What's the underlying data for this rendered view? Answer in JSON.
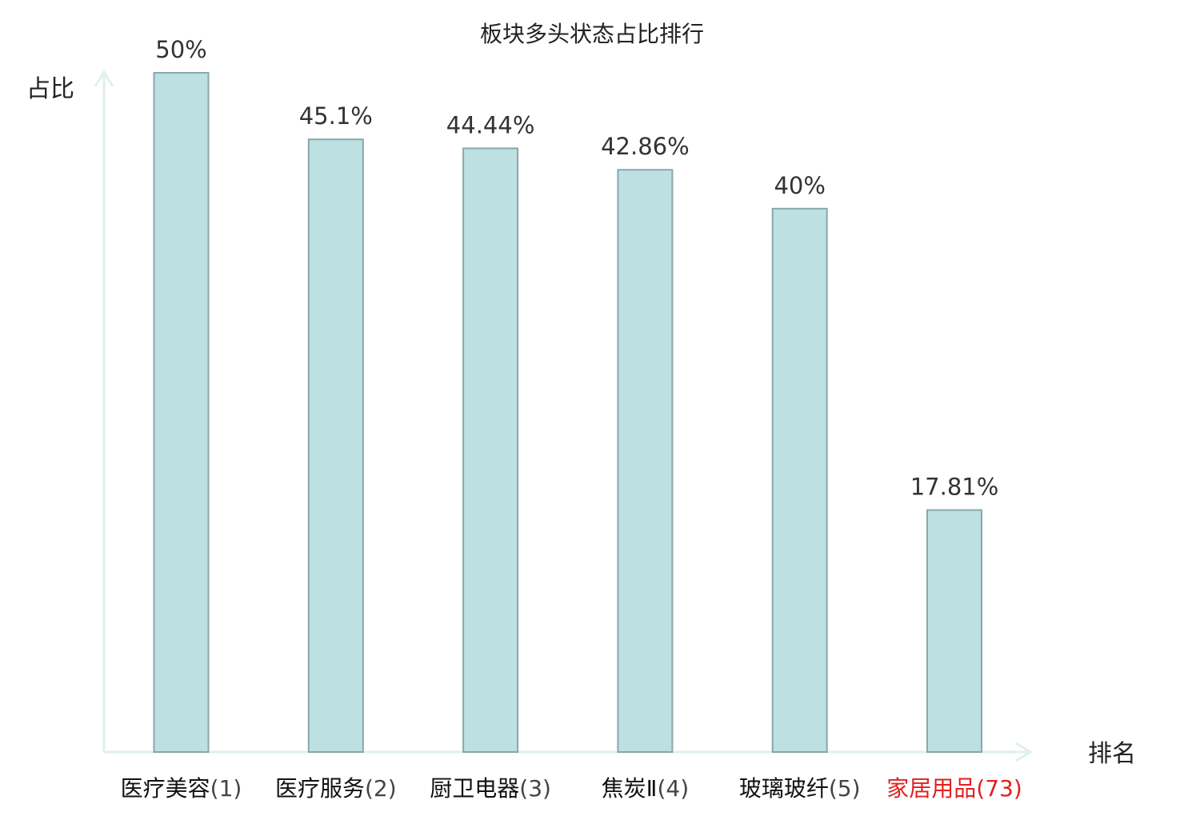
{
  "chart_data": {
    "type": "bar",
    "title": "板块多头状态占比排行",
    "ylabel": "占比",
    "xlabel": "排名",
    "ylim": [
      0,
      50
    ],
    "grid": false,
    "categories": [
      "医疗美容",
      "医疗服务",
      "厨卫电器",
      "焦炭Ⅱ",
      "玻璃玻纤",
      "家居用品"
    ],
    "ranks": [
      "(1)",
      "(2)",
      "(3)",
      "(4)",
      "(5)",
      "(73)"
    ],
    "values": [
      50,
      45.1,
      44.44,
      42.86,
      40,
      17.81
    ],
    "value_labels": [
      "50%",
      "45.1%",
      "44.44%",
      "42.86%",
      "40%",
      "17.81%"
    ],
    "highlighted_index": 5
  },
  "colors": {
    "bar_fill": "#bde0e3",
    "bar_stroke": "#8aa7aa",
    "axis": "#dff0ee",
    "text": "#222222",
    "value_text": "#333333",
    "category_text": "#111111",
    "rank_text": "#444444",
    "highlight": "#e02020"
  }
}
